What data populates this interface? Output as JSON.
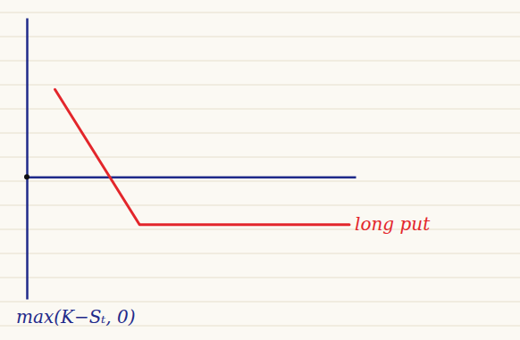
{
  "chart_data": {
    "type": "line",
    "x_label": "max(K−Sₜ, 0)",
    "xlim": [
      0,
      10.5
    ],
    "ylim": [
      -4.6,
      6
    ],
    "tick_labels": false,
    "series": [
      {
        "name": "long put",
        "color": "#e3262b",
        "x": [
          0.9,
          3.6,
          10.3
        ],
        "values": [
          3.3,
          -1.8,
          -1.8
        ]
      }
    ]
  }
}
